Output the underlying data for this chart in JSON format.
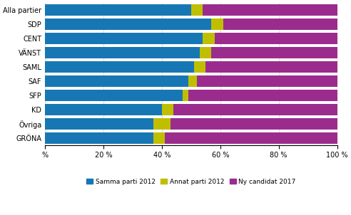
{
  "categories": [
    "Alla partier",
    "SDP",
    "CENT",
    "VÄNST",
    "SAML",
    "SAF",
    "SFP",
    "KD",
    "Övriga",
    "GRÖNA"
  ],
  "samma_parti": [
    50,
    57,
    54,
    53,
    51,
    49,
    47,
    40,
    37,
    37
  ],
  "annat_parti": [
    4,
    4,
    4,
    4,
    4,
    3,
    2,
    4,
    6,
    4
  ],
  "ny_candidat": [
    46,
    39,
    42,
    43,
    45,
    48,
    51,
    56,
    57,
    59
  ],
  "colors": {
    "samma": "#1777B4",
    "annat": "#BFBF00",
    "ny": "#9B2C8E"
  },
  "legend_labels": [
    "Samma parti 2012",
    "Annat parti 2012",
    "Ny candidat 2017"
  ],
  "xticks": [
    0,
    20,
    40,
    60,
    80,
    100
  ],
  "xticklabels": [
    "%",
    "20 %",
    "40 %",
    "60 %",
    "80 %",
    "100 %"
  ],
  "background_color": "#ffffff",
  "bar_height": 0.82,
  "figsize": [
    4.92,
    3.02
  ],
  "dpi": 100
}
